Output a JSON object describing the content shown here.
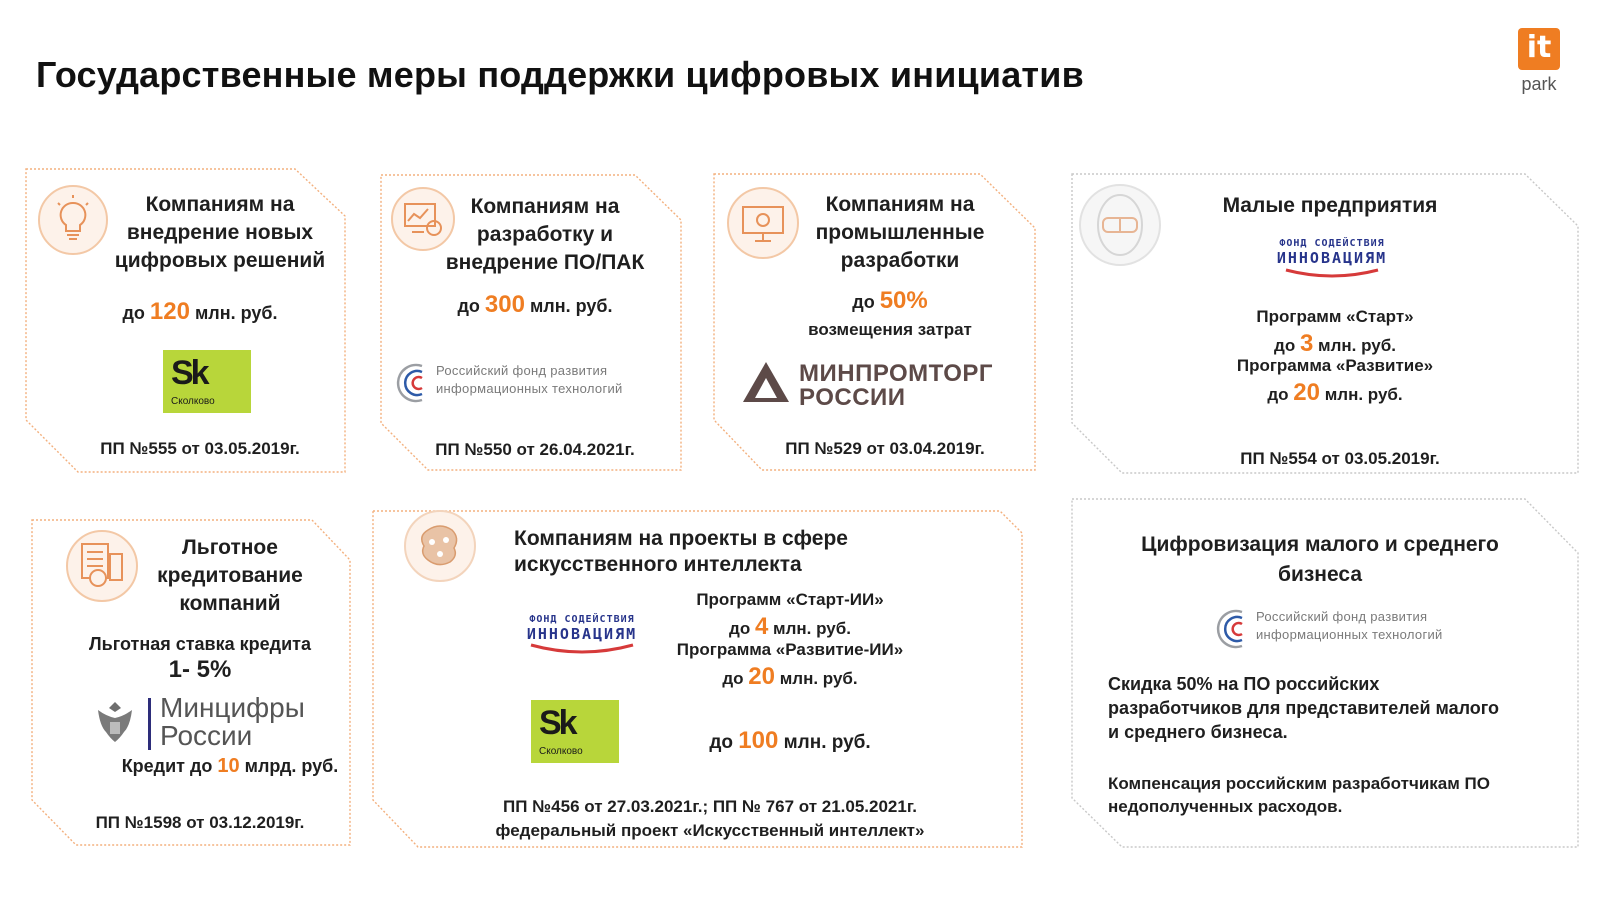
{
  "title": "Государственные меры поддержки цифровых инициатив",
  "logo": {
    "mark": "it",
    "word": "park",
    "color": "#ef7d22"
  },
  "accent_color": "#ef7d22",
  "cards": [
    {
      "id": "new-solutions",
      "icon": "lightbulb-icon",
      "title": [
        "Компаниям на",
        "внедрение новых",
        "цифровых решений"
      ],
      "amount_prefix": "до ",
      "amount_value": "120",
      "amount_suffix": " млн. руб.",
      "logo_letters": "Sk",
      "logo_name": "Сколково",
      "decree": "ПП №555 от 03.05.2019г."
    },
    {
      "id": "software",
      "icon": "software-dev-icon",
      "title": [
        "Компаниям на",
        "разработку и",
        "внедрение ПО/ПАК"
      ],
      "amount_prefix": "до ",
      "amount_value": "300",
      "amount_suffix": " млн. руб.",
      "logo_text": [
        "Российский фонд развития",
        "информационных технологий"
      ],
      "decree": "ПП №550 от 26.04.2021г."
    },
    {
      "id": "industrial",
      "icon": "industrial-monitor-icon",
      "title": [
        "Компаниям на",
        "промышленные",
        "разработки"
      ],
      "amount_prefix": "до ",
      "amount_value": "50%",
      "amount_line2": "возмещения затрат",
      "logo_text": [
        "МИНПРОМТОРГ",
        "РОССИИ"
      ],
      "decree": "ПП №529 от 03.04.2019г."
    },
    {
      "id": "small-business",
      "icon": "vr-goggles-icon",
      "title": [
        "Малые предприятия"
      ],
      "logo_text": [
        "ФОНД СОДЕЙСТВИЯ",
        "ИННОВАЦИЯМ"
      ],
      "program1": "Программ «Старт»",
      "p1_prefix": "до ",
      "p1_value": "3",
      "p1_suffix": " млн. руб.",
      "program2": "Программа «Развитие»",
      "p2_prefix": "до ",
      "p2_value": "20",
      "p2_suffix": " млн. руб.",
      "decree": "ПП №554 от 03.05.2019г."
    },
    {
      "id": "credit",
      "icon": "calculator-document-icon",
      "title": [
        "Льготное",
        "кредитование",
        "компаний"
      ],
      "rate_label": "Льготная ставка кредита",
      "rate_value": "1- 5%",
      "logo_text": [
        "Минцифры",
        "России"
      ],
      "credit_prefix": "Кредит до ",
      "credit_value": "10",
      "credit_suffix": " млрд. руб.",
      "decree": "ПП №1598 от 03.12.2019г."
    },
    {
      "id": "ai",
      "icon": "ai-brain-icon",
      "title": [
        "Компаниям на проекты в сфере",
        "искусственного интеллекта"
      ],
      "logo_text": [
        "ФОНД СОДЕЙСТВИЯ",
        "ИННОВАЦИЯМ"
      ],
      "program1": "Программ «Старт-ИИ»",
      "p1_prefix": "до ",
      "p1_value": "4",
      "p1_suffix": " млн. руб.",
      "program2": "Программа «Развитие-ИИ»",
      "p2_prefix": "до ",
      "p2_value": "20",
      "p2_suffix": " млн. руб.",
      "sk_letters": "Sk",
      "sk_name": "Сколково",
      "p3_prefix": "до ",
      "p3_value": "100",
      "p3_suffix": " млн. руб.",
      "decree_line1": "ПП №456 от 27.03.2021г.; ПП № 767 от 21.05.2021г.",
      "decree_line2": "федеральный проект «Искусственный интеллект»"
    },
    {
      "id": "digital-sme",
      "title": [
        "Цифровизация малого и среднего",
        "бизнеса"
      ],
      "logo_text": [
        "Российский фонд развития",
        "информационных технологий"
      ],
      "desc": [
        "Скидка 50% на ПО российских",
        "разработчиков для представителей малого",
        "и среднего бизнеса."
      ],
      "note": [
        "Компенсация российским разработчикам ПО",
        "недополученных расходов."
      ]
    }
  ]
}
